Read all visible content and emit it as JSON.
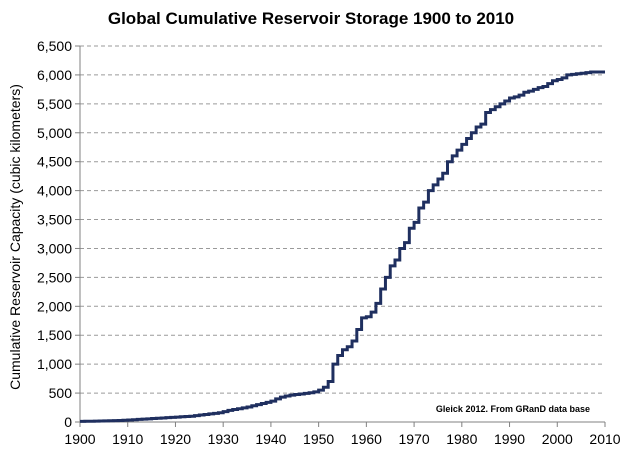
{
  "chart_data": {
    "type": "line",
    "title": "Global Cumulative Reservoir Storage 1900 to 2010",
    "xlabel": "",
    "ylabel": "Cumulative Reservoir Capacity (cubic kilometers)",
    "xlim": [
      1900,
      2010
    ],
    "ylim": [
      0,
      6500
    ],
    "x_ticks": [
      1900,
      1910,
      1920,
      1930,
      1940,
      1950,
      1960,
      1970,
      1980,
      1990,
      2000,
      2010
    ],
    "x_tick_labels": [
      "1900",
      "1910",
      "1920",
      "1930",
      "1940",
      "1950",
      "1960",
      "1970",
      "1980",
      "1990",
      "2000",
      "2010"
    ],
    "y_ticks": [
      0,
      500,
      1000,
      1500,
      2000,
      2500,
      3000,
      3500,
      4000,
      4500,
      5000,
      5500,
      6000,
      6500
    ],
    "y_tick_labels": [
      "0",
      "500",
      "1,000",
      "1,500",
      "2,000",
      "2,500",
      "3,000",
      "3,500",
      "4,000",
      "4,500",
      "5,000",
      "5,500",
      "6,000",
      "6,500"
    ],
    "grid": true,
    "legend": "none",
    "annotation": "Gleick 2012. From GRanD data base",
    "series": [
      {
        "color": "#1f2f5f",
        "step": true,
        "x": [
          1900,
          1901,
          1902,
          1903,
          1904,
          1905,
          1906,
          1907,
          1908,
          1909,
          1910,
          1911,
          1912,
          1913,
          1914,
          1915,
          1916,
          1917,
          1918,
          1919,
          1920,
          1921,
          1922,
          1923,
          1924,
          1925,
          1926,
          1927,
          1928,
          1929,
          1930,
          1931,
          1932,
          1933,
          1934,
          1935,
          1936,
          1937,
          1938,
          1939,
          1940,
          1941,
          1942,
          1943,
          1944,
          1945,
          1946,
          1947,
          1948,
          1949,
          1950,
          1951,
          1952,
          1953,
          1954,
          1955,
          1956,
          1957,
          1958,
          1959,
          1960,
          1961,
          1962,
          1963,
          1964,
          1965,
          1966,
          1967,
          1968,
          1969,
          1970,
          1971,
          1972,
          1973,
          1974,
          1975,
          1976,
          1977,
          1978,
          1979,
          1980,
          1981,
          1982,
          1983,
          1984,
          1985,
          1986,
          1987,
          1988,
          1989,
          1990,
          1991,
          1992,
          1993,
          1994,
          1995,
          1996,
          1997,
          1998,
          1999,
          2000,
          2001,
          2002,
          2003,
          2004,
          2005,
          2006,
          2007,
          2008,
          2009,
          2010
        ],
        "values": [
          10,
          12,
          14,
          16,
          18,
          20,
          22,
          24,
          27,
          30,
          35,
          40,
          45,
          50,
          55,
          60,
          65,
          70,
          75,
          80,
          85,
          90,
          95,
          100,
          110,
          120,
          130,
          140,
          150,
          160,
          180,
          200,
          215,
          230,
          245,
          260,
          280,
          300,
          320,
          340,
          360,
          400,
          430,
          450,
          465,
          475,
          485,
          495,
          505,
          520,
          550,
          600,
          700,
          1000,
          1150,
          1250,
          1300,
          1400,
          1600,
          1800,
          1820,
          1900,
          2050,
          2300,
          2500,
          2700,
          2800,
          3000,
          3100,
          3350,
          3450,
          3700,
          3800,
          4000,
          4100,
          4200,
          4300,
          4500,
          4600,
          4700,
          4800,
          4900,
          5000,
          5100,
          5150,
          5350,
          5400,
          5450,
          5500,
          5550,
          5600,
          5620,
          5650,
          5700,
          5720,
          5750,
          5780,
          5800,
          5850,
          5900,
          5920,
          5950,
          6000,
          6010,
          6020,
          6030,
          6040,
          6050,
          6050,
          6050,
          6050
        ]
      }
    ]
  }
}
